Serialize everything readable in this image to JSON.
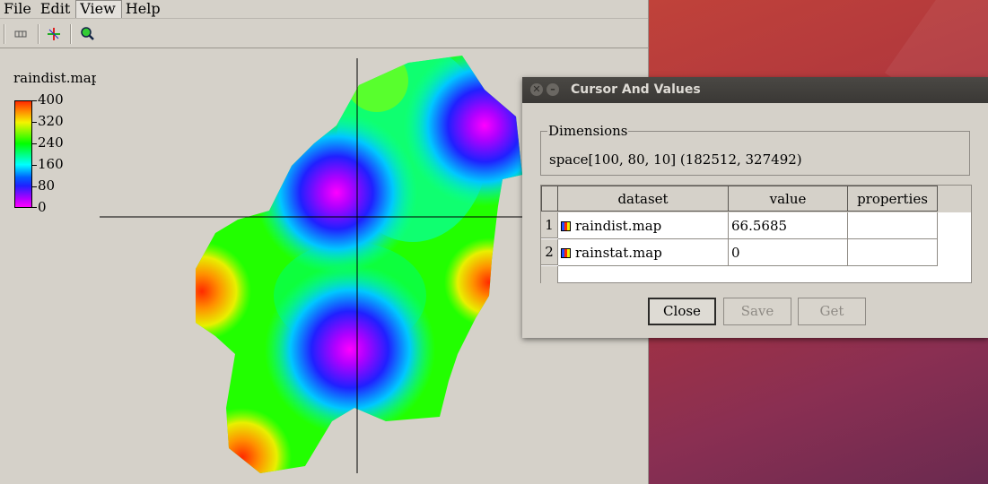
{
  "menu": [
    "File",
    "Edit",
    "View",
    "Help"
  ],
  "legend": {
    "title": "raindist.map",
    "labels": [
      "400",
      "320",
      "240",
      "160",
      "80",
      "0"
    ]
  },
  "dialog": {
    "title": "Cursor And Values",
    "dimensions_label": "Dimensions",
    "dimensions_value": "space[100, 80, 10] (182512, 327492)",
    "columns": [
      "dataset",
      "value",
      "properties"
    ],
    "rows": [
      {
        "index": "1",
        "dataset": "raindist.map",
        "value": "66.5685",
        "properties": ""
      },
      {
        "index": "2",
        "dataset": "rainstat.map",
        "value": "0",
        "properties": ""
      }
    ],
    "buttons": {
      "close": "Close",
      "save": "Save",
      "get": "Get"
    }
  },
  "toolbar": {
    "icons": [
      "columns-icon",
      "crosshair-icon",
      "zoom-icon"
    ]
  }
}
